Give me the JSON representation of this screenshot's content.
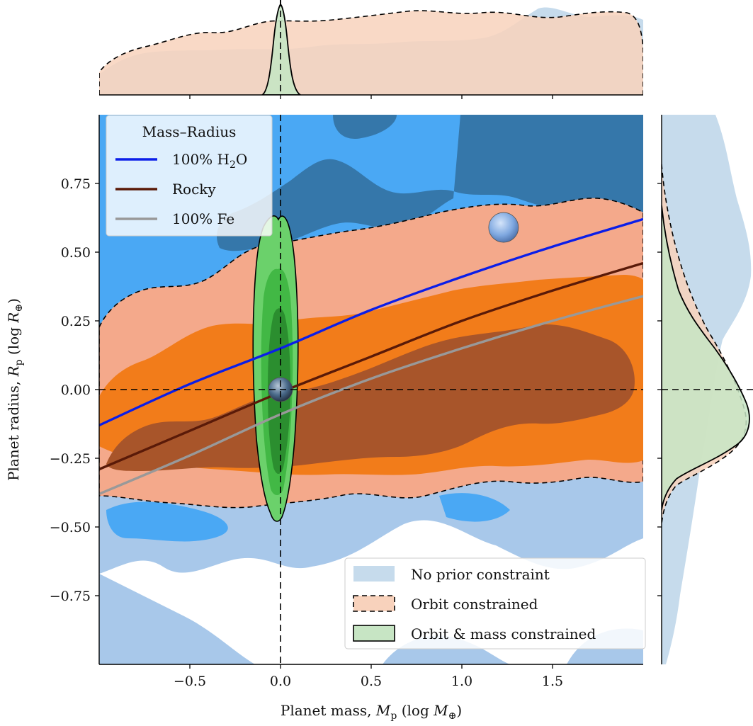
{
  "chart_data": {
    "type": "scatter",
    "xlabel": {
      "main": "Planet mass, ",
      "sym": "M",
      "sub": "p",
      "unit": " (log ",
      "unit_sym": "M",
      "unit_sub": "⊕",
      "close": ")"
    },
    "ylabel": {
      "main": "Planet radius, ",
      "sym": "R",
      "sub": "p",
      "unit": " (log ",
      "unit_sym": "R",
      "unit_sub": "⊕",
      "close": ")"
    },
    "xlim": [
      -1.0,
      2.0
    ],
    "ylim": [
      -1.0,
      1.0
    ],
    "xticks": [
      -0.5,
      0.0,
      0.5,
      1.0,
      1.5
    ],
    "xtick_labels": [
      "−0.5",
      "0.0",
      "0.5",
      "1.0",
      "1.5"
    ],
    "yticks": [
      0.75,
      0.5,
      0.25,
      0.0,
      -0.25,
      -0.5,
      -0.75
    ],
    "ytick_labels": [
      "0.75",
      "0.50",
      "0.25",
      "0.00",
      "−0.25",
      "−0.50",
      "−0.75"
    ],
    "grid": false,
    "reference_lines": {
      "x": 0.0,
      "y": 0.0,
      "style": "dashed"
    },
    "mass_radius_legend": {
      "title": "Mass–Radius",
      "placement": "top-left",
      "entries": [
        {
          "label": "100% H",
          "sub": "2",
          "tail": "O",
          "color": "#0b1ee8"
        },
        {
          "label": "Rocky",
          "sub": "",
          "tail": "",
          "color": "#5a1a08"
        },
        {
          "label": "100% Fe",
          "sub": "",
          "tail": "",
          "color": "#999999"
        }
      ]
    },
    "constraint_legend": {
      "placement": "bottom-right",
      "entries": [
        {
          "label": "No prior constraint",
          "fill": "#c6dbec",
          "edge": "none"
        },
        {
          "label": "Orbit constrained",
          "fill": "#f8d2bc",
          "edge": "dashed"
        },
        {
          "label": "Orbit & mass constrained",
          "fill": "#c7e5c4",
          "edge": "solid"
        }
      ]
    },
    "series": [
      {
        "name": "100% H2O",
        "color": "#0b1ee8",
        "x": [
          -1.0,
          -0.5,
          0.0,
          0.5,
          1.0,
          1.5,
          2.0
        ],
        "y": [
          -0.13,
          0.02,
          0.15,
          0.29,
          0.41,
          0.52,
          0.62
        ]
      },
      {
        "name": "Rocky",
        "color": "#5a1a08",
        "x": [
          -1.0,
          -0.5,
          0.0,
          0.5,
          1.0,
          1.5,
          2.0
        ],
        "y": [
          -0.29,
          -0.15,
          -0.01,
          0.12,
          0.25,
          0.36,
          0.46
        ]
      },
      {
        "name": "100% Fe",
        "color": "#999999",
        "x": [
          -1.0,
          -0.5,
          0.0,
          0.5,
          1.0,
          1.5,
          2.0
        ],
        "y": [
          -0.38,
          -0.24,
          -0.09,
          0.04,
          0.15,
          0.25,
          0.34
        ]
      }
    ],
    "markers": [
      {
        "name": "earth",
        "x": 0.0,
        "y": 0.0,
        "color": "#4a6a8a"
      },
      {
        "name": "neptune",
        "x": 1.23,
        "y": 0.59,
        "color": "#7fa8e0"
      }
    ],
    "colors": {
      "prior_outer": "#a8c8ea",
      "prior_mid": "#4aa8f4",
      "prior_inner": "#3577aa",
      "orbit_outer": "#f4a98b",
      "orbit_mid": "#f27c1a",
      "orbit_inner": "#a8552a",
      "mass_outer": "#6bd16b",
      "mass_mid": "#42b845",
      "mass_inner": "#2b8e2f",
      "marginal_prior": "#c6dbec",
      "marginal_orbit": "#f8d2bc",
      "marginal_mass": "#c7e5c4"
    }
  }
}
